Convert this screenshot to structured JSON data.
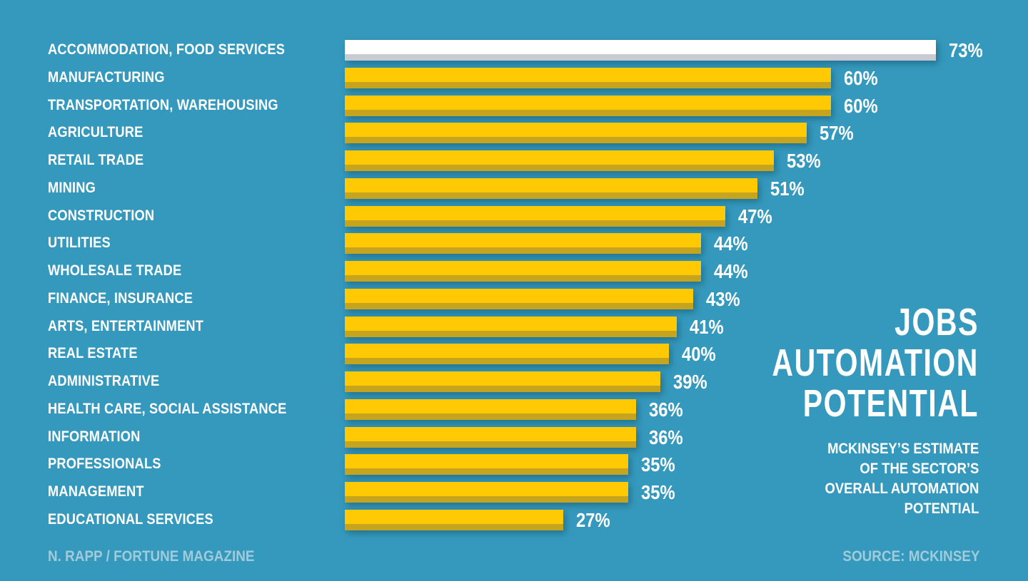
{
  "chart_data": {
    "type": "bar",
    "orientation": "horizontal",
    "title": "JOBS AUTOMATION POTENTIAL",
    "title_lines": [
      "JOBS",
      "AUTOMATION",
      "POTENTIAL"
    ],
    "subtitle": "MCKINSEY'S ESTIMATE OF THE SECTOR'S OVERALL AUTOMATION POTENTIAL",
    "subtitle_lines": [
      "MCKINSEY’S ESTIMATE",
      "OF THE SECTOR’S",
      "OVERALL AUTOMATION",
      "POTENTIAL"
    ],
    "categories": [
      "ACCOMMODATION, FOOD SERVICES",
      "MANUFACTURING",
      "TRANSPORTATION, WAREHOUSING",
      "AGRICULTURE",
      "RETAIL TRADE",
      "MINING",
      "CONSTRUCTION",
      "UTILITIES",
      "WHOLESALE TRADE",
      "FINANCE, INSURANCE",
      "ARTS, ENTERTAINMENT",
      "REAL ESTATE",
      "ADMINISTRATIVE",
      "HEALTH CARE, SOCIAL ASSISTANCE",
      "INFORMATION",
      "PROFESSIONALS",
      "MANAGEMENT",
      "EDUCATIONAL SERVICES"
    ],
    "values": [
      73,
      60,
      60,
      57,
      53,
      51,
      47,
      44,
      44,
      43,
      41,
      40,
      39,
      36,
      36,
      35,
      35,
      27
    ],
    "value_suffix": "%",
    "xlim": [
      0,
      73
    ],
    "grid": false,
    "legend": false,
    "highlight_index": 0,
    "colors": {
      "background": "#3599BD",
      "bar": "#FFCA03",
      "bar_shade": "#C7A41E",
      "highlight_bar": "#FFFFFF",
      "highlight_bar_shade": "#C8CCD2",
      "label_text": "#FFFFFF",
      "muted_text": "#9FCBDB"
    }
  },
  "footer": {
    "credit": "N. RAPP / FORTUNE MAGAZINE",
    "source": "SOURCE: MCKINSEY"
  }
}
